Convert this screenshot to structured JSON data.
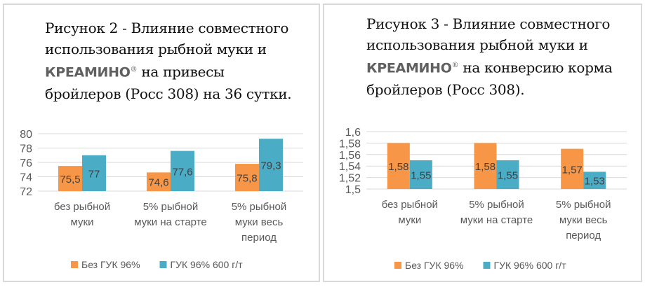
{
  "chart_data": [
    {
      "type": "bar",
      "title_parts": [
        "Рисунок 2 - Влияние совместного использования рыбной муки и ",
        "КРЕАМИНО",
        "®",
        " на привесы бройлеров (Росс 308) на 36 сутки."
      ],
      "categories": [
        [
          "без рыбной",
          "муки"
        ],
        [
          "5% рыбной",
          "муки на старте"
        ],
        [
          "5% рыбной",
          "муки весь",
          "период"
        ]
      ],
      "series": [
        {
          "name": "Без ГУК 96%",
          "values": [
            75.5,
            74.6,
            75.8
          ],
          "labels": [
            "75,5",
            "74,6",
            "75,8"
          ],
          "color": "#F79646"
        },
        {
          "name": "ГУК 96% 600 г/т",
          "values": [
            77,
            77.6,
            79.3
          ],
          "labels": [
            "77",
            "77,6",
            "79,3"
          ],
          "color": "#4BACC6"
        }
      ],
      "ylim": [
        72,
        80
      ],
      "yticks": [
        72,
        74,
        76,
        78,
        80
      ],
      "ytick_labels": [
        "72",
        "74",
        "76",
        "78",
        "80"
      ],
      "grid": true,
      "legend": "bottom"
    },
    {
      "type": "bar",
      "title_parts": [
        "Рисунок 3 - Влияние совместного использования рыбной муки и ",
        "КРЕАМИНО",
        "®",
        " на конверсию корма бройлеров (Росс 308)."
      ],
      "categories": [
        [
          "без рыбной",
          "муки"
        ],
        [
          "5% рыбной",
          "муки на старте"
        ],
        [
          "5% рыбной",
          "муки весь",
          "период"
        ]
      ],
      "series": [
        {
          "name": "Без ГУК 96%",
          "values": [
            1.58,
            1.58,
            1.57
          ],
          "labels": [
            "1,58",
            "1,58",
            "1,57"
          ],
          "color": "#F79646"
        },
        {
          "name": "ГУК 96% 600 г/т",
          "values": [
            1.55,
            1.55,
            1.53
          ],
          "labels": [
            "1,55",
            "1,55",
            "1,53"
          ],
          "color": "#4BACC6"
        }
      ],
      "ylim": [
        1.5,
        1.6
      ],
      "yticks": [
        1.5,
        1.52,
        1.54,
        1.56,
        1.58,
        1.6
      ],
      "ytick_labels": [
        "1,5",
        "1,52",
        "1,54",
        "1,56",
        "1,58",
        "1,6"
      ],
      "grid": true,
      "legend": "bottom"
    }
  ]
}
